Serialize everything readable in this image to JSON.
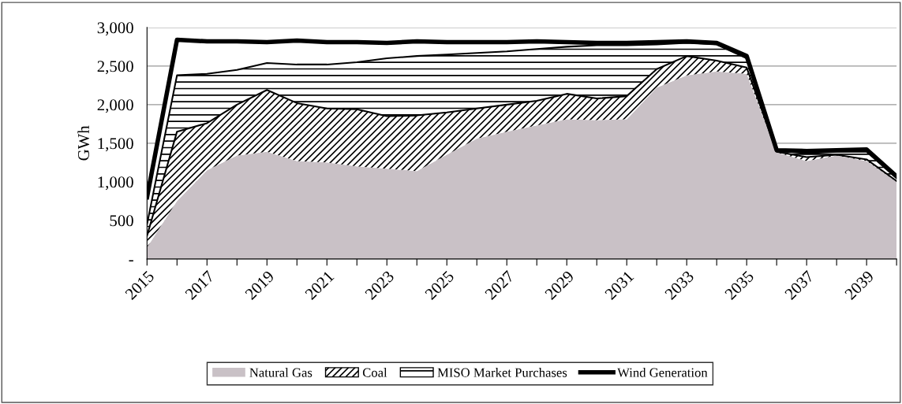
{
  "chart_data": {
    "type": "area",
    "stacked": true,
    "ylabel": "GWh",
    "x": [
      2015,
      2016,
      2017,
      2018,
      2019,
      2020,
      2021,
      2022,
      2023,
      2024,
      2025,
      2026,
      2027,
      2028,
      2029,
      2030,
      2031,
      2032,
      2033,
      2034,
      2035,
      2036,
      2037,
      2038,
      2039,
      2040
    ],
    "series": [
      {
        "name": "Natural Gas",
        "color": "#c9c1c6",
        "values": [
          150,
          750,
          1150,
          1340,
          1390,
          1270,
          1250,
          1200,
          1170,
          1140,
          1350,
          1560,
          1650,
          1730,
          1810,
          1800,
          1810,
          2220,
          2380,
          2430,
          2400,
          1380,
          1270,
          1340,
          1270,
          1000
        ]
      },
      {
        "name": "Coal",
        "color": "#000000",
        "values": [
          150,
          900,
          610,
          660,
          800,
          750,
          700,
          740,
          680,
          720,
          550,
          390,
          350,
          320,
          330,
          280,
          300,
          240,
          250,
          140,
          80,
          10,
          50,
          10,
          20,
          10
        ]
      },
      {
        "name": "MISO Market Purchases",
        "color": "#000000",
        "values": [
          150,
          730,
          640,
          450,
          350,
          500,
          570,
          610,
          750,
          770,
          750,
          720,
          690,
          670,
          610,
          690,
          660,
          320,
          170,
          210,
          120,
          10,
          50,
          40,
          100,
          40
        ]
      },
      {
        "name": "Wind Generation",
        "color": "#000000",
        "values": [
          350,
          460,
          420,
          370,
          270,
          310,
          290,
          260,
          200,
          190,
          160,
          140,
          120,
          100,
          60,
          30,
          30,
          30,
          20,
          20,
          30,
          10,
          30,
          20,
          30,
          20
        ]
      }
    ],
    "xlim": [
      2015,
      2040
    ],
    "xticks": [
      {
        "value": 2015,
        "label": "2015"
      },
      {
        "value": 2016,
        "label": null
      },
      {
        "value": 2017,
        "label": "2017"
      },
      {
        "value": 2018,
        "label": null
      },
      {
        "value": 2019,
        "label": "2019"
      },
      {
        "value": 2020,
        "label": null
      },
      {
        "value": 2021,
        "label": "2021"
      },
      {
        "value": 2022,
        "label": null
      },
      {
        "value": 2023,
        "label": "2023"
      },
      {
        "value": 2024,
        "label": null
      },
      {
        "value": 2025,
        "label": "2025"
      },
      {
        "value": 2026,
        "label": null
      },
      {
        "value": 2027,
        "label": "2027"
      },
      {
        "value": 2028,
        "label": null
      },
      {
        "value": 2029,
        "label": "2029"
      },
      {
        "value": 2030,
        "label": null
      },
      {
        "value": 2031,
        "label": "2031"
      },
      {
        "value": 2032,
        "label": null
      },
      {
        "value": 2033,
        "label": "2033"
      },
      {
        "value": 2034,
        "label": null
      },
      {
        "value": 2035,
        "label": "2035"
      },
      {
        "value": 2036,
        "label": null
      },
      {
        "value": 2037,
        "label": "2037"
      },
      {
        "value": 2038,
        "label": null
      },
      {
        "value": 2039,
        "label": "2039"
      },
      {
        "value": 2040,
        "label": null
      }
    ],
    "ylim": [
      0,
      3000
    ],
    "yticks": [
      {
        "value": 0,
        "label": "-"
      },
      {
        "value": 500,
        "label": "500"
      },
      {
        "value": 1000,
        "label": "1,000"
      },
      {
        "value": 1500,
        "label": "1,500"
      },
      {
        "value": 2000,
        "label": "2,000"
      },
      {
        "value": 2500,
        "label": "2,500"
      },
      {
        "value": 3000,
        "label": "3,000"
      }
    ],
    "grid": "y",
    "legend": "bottom"
  }
}
